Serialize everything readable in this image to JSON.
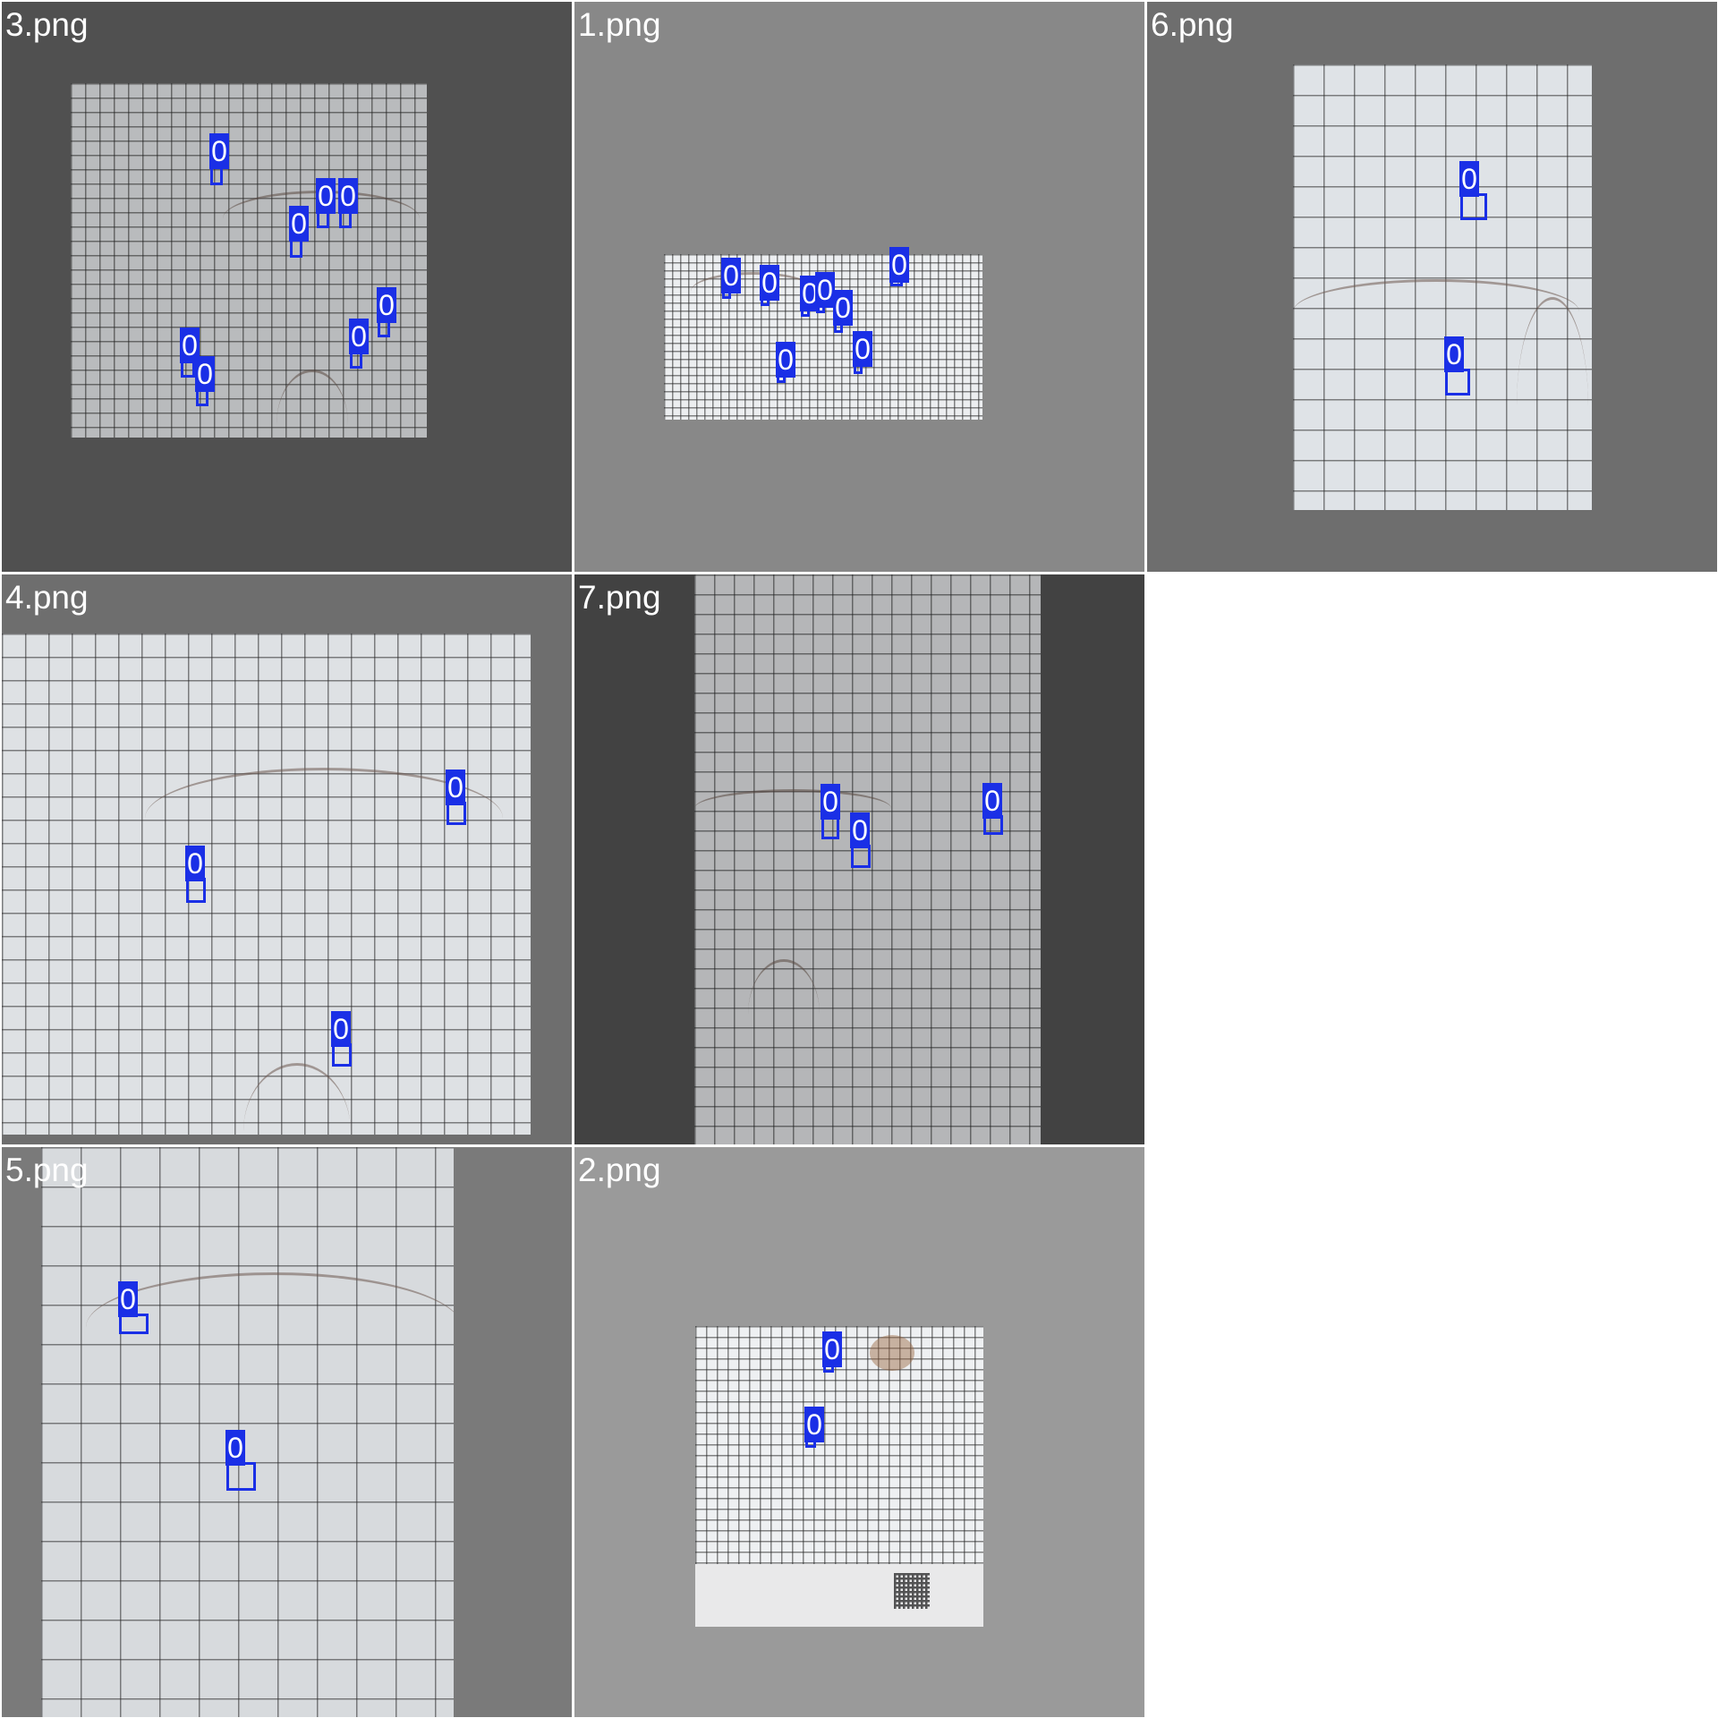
{
  "tiles": [
    {
      "label": "3.png",
      "detections": [
        "0",
        "0",
        "0",
        "0",
        "0",
        "0",
        "0",
        "0"
      ]
    },
    {
      "label": "1.png",
      "detections": [
        "0",
        "0",
        "0",
        "0",
        "0",
        "0",
        "0",
        "0"
      ]
    },
    {
      "label": "6.png",
      "detections": [
        "0",
        "0"
      ]
    },
    {
      "label": "4.png",
      "detections": [
        "0",
        "0",
        "0"
      ]
    },
    {
      "label": "7.png",
      "detections": [
        "0",
        "0",
        "0"
      ]
    },
    {
      "label": "5.png",
      "detections": [
        "0",
        "0"
      ]
    },
    {
      "label": "2.png",
      "detections": [
        "0",
        "0"
      ]
    }
  ],
  "colors": {
    "box": "#1a2fe6",
    "label_text": "#ffffff"
  }
}
